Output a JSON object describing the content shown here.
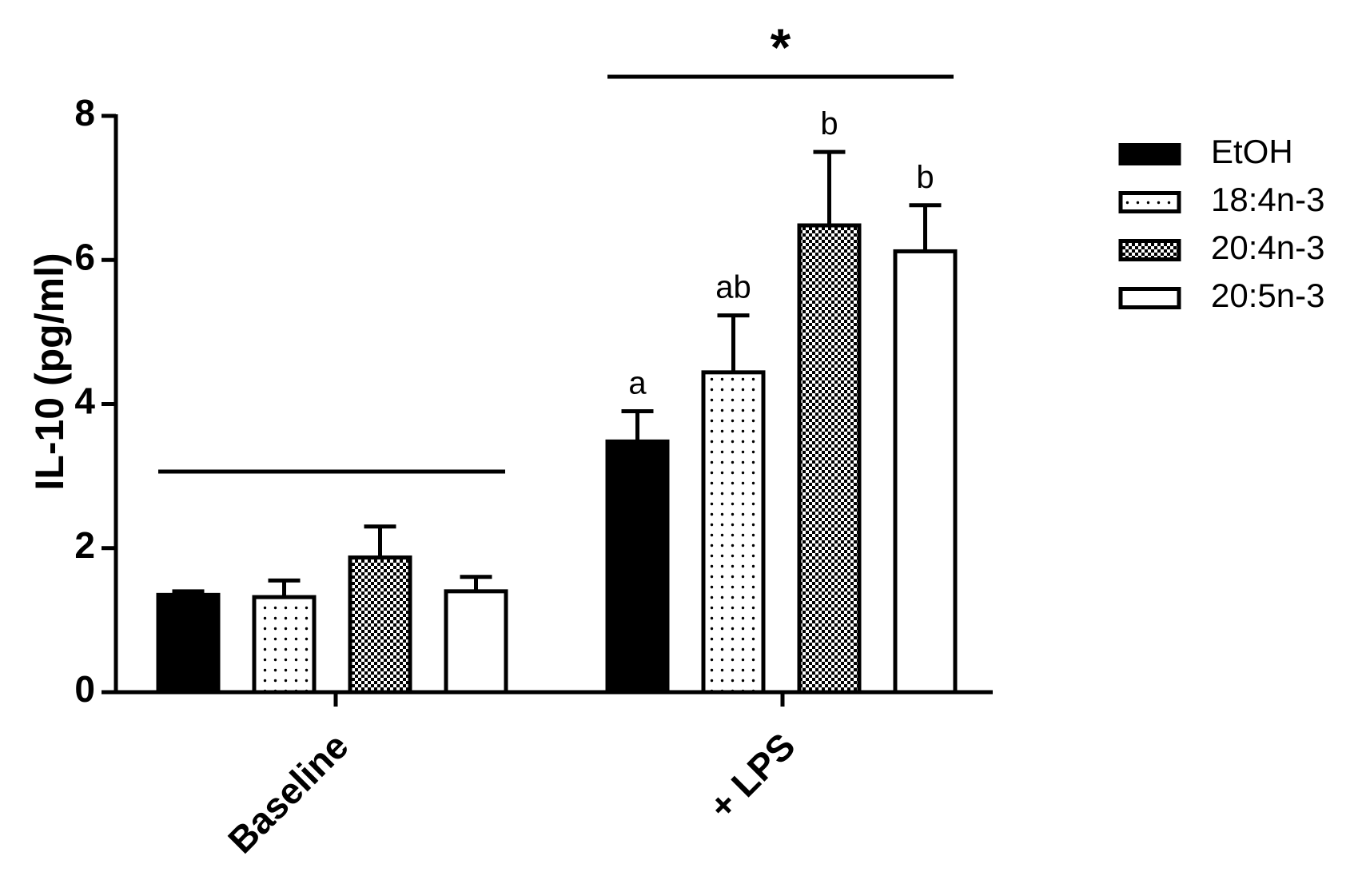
{
  "chart_data": {
    "type": "bar",
    "ylabel": "IL-10 (pg/ml)",
    "xlabel": "",
    "ylim": [
      0,
      8
    ],
    "yticks": [
      "0",
      "2",
      "4",
      "6",
      "8"
    ],
    "categories": [
      "Baseline",
      "+ LPS"
    ],
    "series": [
      {
        "name": "EtOH",
        "values": [
          1.35,
          3.48
        ],
        "errors": [
          0.05,
          0.42
        ],
        "sig": [
          "",
          "a"
        ],
        "pattern": "solid"
      },
      {
        "name": "18:4n-3",
        "values": [
          1.32,
          4.44
        ],
        "errors": [
          0.23,
          0.79
        ],
        "sig": [
          "",
          "ab"
        ],
        "pattern": "dots"
      },
      {
        "name": "20:4n-3",
        "values": [
          1.87,
          6.48
        ],
        "errors": [
          0.43,
          1.02
        ],
        "sig": [
          "",
          "b"
        ],
        "pattern": "checker"
      },
      {
        "name": "20:5n-3",
        "values": [
          1.4,
          6.12
        ],
        "errors": [
          0.2,
          0.64
        ],
        "sig": [
          "",
          "b"
        ],
        "pattern": "open"
      }
    ],
    "group_lines": [
      {
        "group": "Baseline",
        "label": ""
      },
      {
        "group": "+ LPS",
        "label": "*"
      }
    ],
    "legend_position": "right",
    "grid": false
  }
}
